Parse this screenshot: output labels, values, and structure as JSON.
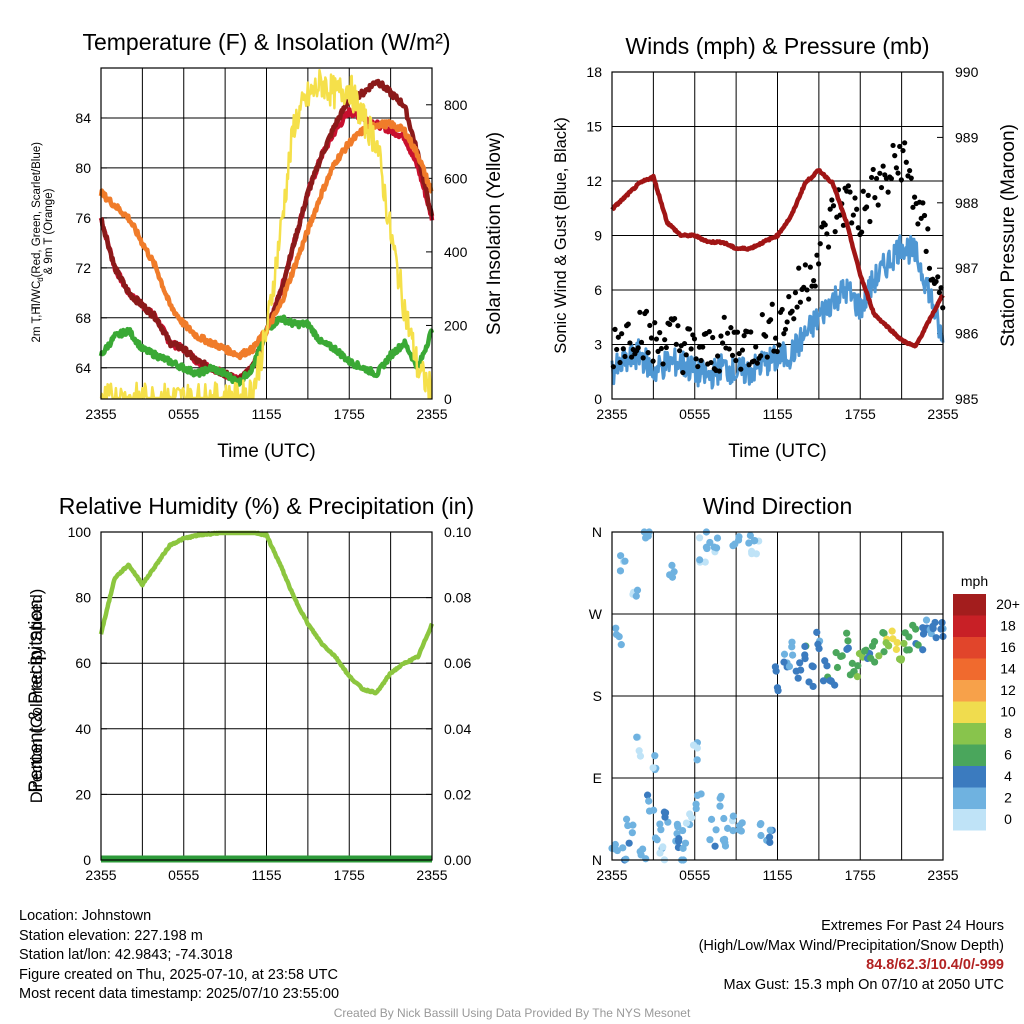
{
  "chart_data": [
    {
      "type": "line",
      "title": "Temperature (F) & Insolation (W/m²)",
      "xlabel": "Time (UTC)",
      "ylabel": "2m T, Td, HI/WC (Red, Green, Scarlet/Blue) & 9m T (Orange)",
      "ylabel_right": "Solar Insolation (Yellow)",
      "x_ticks": [
        "2355",
        "0555",
        "1155",
        "1755",
        "2355"
      ],
      "y_ticks": [
        64,
        68,
        72,
        76,
        80,
        84
      ],
      "y_ticks_right": [
        0,
        200,
        400,
        600,
        800
      ],
      "ylim": [
        61.5,
        88
      ],
      "ylim_right": [
        0,
        900
      ],
      "x_hours": [
        0,
        1,
        2,
        3,
        4,
        5,
        6,
        7,
        8,
        9,
        10,
        11,
        12,
        13,
        14,
        15,
        16,
        17,
        18,
        19,
        20,
        21,
        22,
        23,
        24
      ],
      "series": [
        {
          "name": "2m T",
          "color": "#c8102e",
          "values": [
            76,
            72,
            70,
            69,
            68,
            66,
            65.5,
            64.5,
            64,
            63.5,
            63,
            64,
            67,
            70,
            74,
            78,
            81,
            83,
            84.5,
            84,
            83.5,
            83,
            82.5,
            80,
            76
          ]
        },
        {
          "name": "HI/WC",
          "color": "#8b1a1a",
          "values": [
            76,
            72,
            70,
            69,
            68,
            66,
            65.5,
            64.5,
            64,
            63.5,
            63,
            64,
            67,
            70,
            74,
            78,
            81,
            83.5,
            85.5,
            86,
            87,
            86,
            85,
            81,
            76
          ]
        },
        {
          "name": "Td",
          "color": "#3aa935",
          "values": [
            65,
            66.5,
            67,
            65.5,
            65,
            64.5,
            64,
            63.5,
            64,
            63.5,
            62.8,
            64,
            67,
            68,
            67.5,
            67.5,
            66,
            65.5,
            64.5,
            64,
            63.5,
            65,
            66,
            64,
            67
          ]
        },
        {
          "name": "9m T",
          "color": "#f07c2a",
          "values": [
            78,
            77,
            76,
            74,
            72,
            69,
            67.5,
            66.5,
            66,
            65.5,
            65,
            65.5,
            67,
            69,
            72,
            75,
            78,
            80.5,
            82,
            83,
            83.5,
            83.5,
            83,
            81,
            78
          ]
        },
        {
          "name": "Solar Insolation",
          "axis": "right",
          "color": "#f5e04a",
          "values": [
            0,
            0,
            0,
            0,
            0,
            0,
            0,
            0,
            0,
            0,
            0,
            20,
            180,
            450,
            750,
            820,
            860,
            830,
            850,
            760,
            700,
            450,
            250,
            80,
            20
          ]
        }
      ]
    },
    {
      "type": "scatter",
      "title": "Winds (mph) & Pressure (mb)",
      "xlabel": "Time (UTC)",
      "ylabel": "Sonic Wind & Gust (Blue, Black)",
      "ylabel_right": "Station Pressure (Maroon)",
      "x_ticks": [
        "2355",
        "0555",
        "1155",
        "1755",
        "2355"
      ],
      "y_ticks": [
        0,
        3,
        6,
        9,
        12,
        15,
        18
      ],
      "y_ticks_right": [
        985,
        986,
        987,
        988,
        989,
        990
      ],
      "ylim": [
        0,
        18
      ],
      "ylim_right": [
        985,
        990
      ],
      "x_hours": [
        0,
        1,
        2,
        3,
        4,
        5,
        6,
        7,
        8,
        9,
        10,
        11,
        12,
        13,
        14,
        15,
        16,
        17,
        18,
        19,
        20,
        21,
        22,
        23,
        24
      ],
      "series": [
        {
          "name": "Sonic Wind",
          "color": "#4f97d3",
          "values": [
            1.5,
            2,
            2.5,
            1.5,
            2,
            2,
            1.5,
            1.2,
            1.8,
            1.5,
            1.5,
            2,
            2.2,
            2.5,
            3.5,
            4.5,
            5.5,
            6,
            5,
            6.5,
            7.5,
            8.5,
            8,
            6,
            3
          ]
        },
        {
          "name": "Gust",
          "color": "#000000",
          "values": [
            3,
            3.5,
            4,
            3,
            3.5,
            3,
            2.5,
            2.5,
            3,
            3,
            3,
            3.5,
            4,
            5,
            6.5,
            8,
            10,
            11,
            10,
            11.5,
            12,
            13.5,
            11,
            8,
            5
          ]
        },
        {
          "name": "Station Pressure",
          "axis": "right",
          "color": "#a01515",
          "values": [
            987.9,
            988.1,
            988.3,
            988.4,
            987.7,
            987.5,
            987.5,
            987.4,
            987.4,
            987.3,
            987.3,
            987.4,
            987.5,
            987.8,
            988.3,
            988.5,
            988.3,
            987.7,
            986.9,
            986.3,
            986.1,
            985.9,
            985.8,
            986.2,
            986.6
          ]
        }
      ]
    },
    {
      "type": "line",
      "title": "Relative Humidity (%) & Precipitation (in)",
      "xlabel": "",
      "ylabel": "Percent & Precipitation",
      "x_ticks": [
        "2355",
        "0555",
        "1155",
        "1755",
        "2355"
      ],
      "y_ticks": [
        0,
        20,
        40,
        60,
        80,
        100
      ],
      "y_ticks_right": [
        "0.00",
        "0.02",
        "0.04",
        "0.06",
        "0.08",
        "0.10"
      ],
      "ylim": [
        0,
        100
      ],
      "ylim_right": [
        0,
        0.1
      ],
      "x_hours": [
        0,
        1,
        2,
        3,
        4,
        5,
        6,
        7,
        8,
        9,
        10,
        11,
        12,
        13,
        14,
        15,
        16,
        17,
        18,
        19,
        20,
        21,
        22,
        23,
        24
      ],
      "series": [
        {
          "name": "Relative Humidity",
          "color": "#8cc63f",
          "values": [
            69,
            86,
            90,
            84,
            90,
            96,
            98,
            99,
            99.5,
            100,
            100,
            100,
            99,
            90,
            80,
            72,
            66,
            62,
            56,
            52,
            51,
            57,
            60,
            62,
            72
          ]
        },
        {
          "name": "Precipitation",
          "axis": "right",
          "color": "#2e9b3a",
          "values": [
            0,
            0,
            0,
            0,
            0,
            0,
            0,
            0,
            0,
            0,
            0,
            0,
            0,
            0,
            0,
            0,
            0,
            0,
            0,
            0,
            0,
            0,
            0,
            0,
            0
          ]
        }
      ]
    },
    {
      "type": "scatter",
      "title": "Wind Direction",
      "xlabel": "",
      "ylabel": "Direction (Colored By Speed)",
      "x_ticks": [
        "2355",
        "0555",
        "1155",
        "1755",
        "2355"
      ],
      "y_ticks": [
        "N",
        "E",
        "S",
        "W",
        "N"
      ],
      "ylim": [
        0,
        360
      ],
      "colorbar": {
        "title": "mph",
        "labels": [
          "20+",
          "18",
          "16",
          "14",
          "12",
          "10",
          "8",
          "6",
          "4",
          "2",
          "0"
        ],
        "colors": [
          "#a31d1d",
          "#c82026",
          "#e1452b",
          "#f06a2e",
          "#f7a14a",
          "#f0dc4e",
          "#88c44c",
          "#4aa65c",
          "#3b7bbf",
          "#6fb2e0",
          "#bfe3f7"
        ]
      },
      "points": [
        {
          "t": 0.2,
          "dir": 20,
          "spd": 2
        },
        {
          "t": 0.5,
          "dir": 250,
          "spd": 2
        },
        {
          "t": 0.8,
          "dir": 330,
          "spd": 1
        },
        {
          "t": 1,
          "dir": 5,
          "spd": 3
        },
        {
          "t": 1.3,
          "dir": 40,
          "spd": 2
        },
        {
          "t": 1.6,
          "dir": 300,
          "spd": 1
        },
        {
          "t": 2,
          "dir": 120,
          "spd": 1
        },
        {
          "t": 2.2,
          "dir": 10,
          "spd": 2
        },
        {
          "t": 2.5,
          "dir": 350,
          "spd": 1
        },
        {
          "t": 2.8,
          "dir": 60,
          "spd": 3
        },
        {
          "t": 3,
          "dir": 110,
          "spd": 1
        },
        {
          "t": 3.3,
          "dir": 30,
          "spd": 2
        },
        {
          "t": 3.6,
          "dir": 15,
          "spd": 1
        },
        {
          "t": 4,
          "dir": 45,
          "spd": 3
        },
        {
          "t": 4.3,
          "dir": 320,
          "spd": 2
        },
        {
          "t": 4.6,
          "dir": 25,
          "spd": 2
        },
        {
          "t": 5,
          "dir": 20,
          "spd": 3
        },
        {
          "t": 5.3,
          "dir": 10,
          "spd": 2
        },
        {
          "t": 5.6,
          "dir": 50,
          "spd": 1
        },
        {
          "t": 6,
          "dir": 115,
          "spd": 1
        },
        {
          "t": 6.3,
          "dir": 70,
          "spd": 2
        },
        {
          "t": 6.6,
          "dir": 340,
          "spd": 1
        },
        {
          "t": 7,
          "dir": 355,
          "spd": 2
        },
        {
          "t": 7.3,
          "dir": 30,
          "spd": 3
        },
        {
          "t": 7.6,
          "dir": 345,
          "spd": 1
        },
        {
          "t": 8,
          "dir": 60,
          "spd": 2
        },
        {
          "t": 8.3,
          "dir": 20,
          "spd": 2
        },
        {
          "t": 8.6,
          "dir": 45,
          "spd": 1
        },
        {
          "t": 9,
          "dir": 352,
          "spd": 1
        },
        {
          "t": 9.3,
          "dir": 30,
          "spd": 2
        },
        {
          "t": 10,
          "dir": 350,
          "spd": 1
        },
        {
          "t": 10.5,
          "dir": 340,
          "spd": 1
        },
        {
          "t": 11,
          "dir": 30,
          "spd": 2
        },
        {
          "t": 11.5,
          "dir": 20,
          "spd": 3
        },
        {
          "t": 12,
          "dir": 200,
          "spd": 4
        },
        {
          "t": 12.5,
          "dir": 215,
          "spd": 3
        },
        {
          "t": 13,
          "dir": 225,
          "spd": 2
        },
        {
          "t": 13.5,
          "dir": 205,
          "spd": 4
        },
        {
          "t": 14,
          "dir": 220,
          "spd": 5
        },
        {
          "t": 14.5,
          "dir": 200,
          "spd": 4
        },
        {
          "t": 15,
          "dir": 235,
          "spd": 3
        },
        {
          "t": 15.5,
          "dir": 210,
          "spd": 5
        },
        {
          "t": 16,
          "dir": 195,
          "spd": 4
        },
        {
          "t": 16.5,
          "dir": 225,
          "spd": 6
        },
        {
          "t": 17,
          "dir": 240,
          "spd": 5
        },
        {
          "t": 17.5,
          "dir": 205,
          "spd": 6
        },
        {
          "t": 18,
          "dir": 215,
          "spd": 7
        },
        {
          "t": 18.5,
          "dir": 230,
          "spd": 5
        },
        {
          "t": 19,
          "dir": 225,
          "spd": 6
        },
        {
          "t": 19.5,
          "dir": 235,
          "spd": 7
        },
        {
          "t": 20,
          "dir": 245,
          "spd": 9
        },
        {
          "t": 20.5,
          "dir": 240,
          "spd": 10
        },
        {
          "t": 21,
          "dir": 230,
          "spd": 8
        },
        {
          "t": 21.5,
          "dir": 245,
          "spd": 6
        },
        {
          "t": 22,
          "dir": 250,
          "spd": 5
        },
        {
          "t": 22.5,
          "dir": 240,
          "spd": 4
        },
        {
          "t": 23,
          "dir": 255,
          "spd": 3
        },
        {
          "t": 23.5,
          "dir": 250,
          "spd": 4
        },
        {
          "t": 24,
          "dir": 260,
          "spd": 3
        }
      ]
    }
  ],
  "info": {
    "location": "Location: Johnstown",
    "elevation": "Station elevation: 227.198 m",
    "latlon": "Station lat/lon: 42.9843; -74.3018",
    "created": "Figure created on Thu, 2025-07-10, at 23:58 UTC",
    "recent": "Most recent data timestamp: 2025/07/10 23:55:00"
  },
  "extremes": {
    "title": "Extremes For Past 24 Hours",
    "subtitle": "(High/Low/Max Wind/Precipitation/Snow Depth)",
    "values": "84.8/62.3/10.4/0/-999",
    "gust": "Max Gust: 15.3 mph On 07/10 at 2050 UTC"
  },
  "credit": "Created By Nick Bassill Using Data Provided By The NYS Mesonet"
}
